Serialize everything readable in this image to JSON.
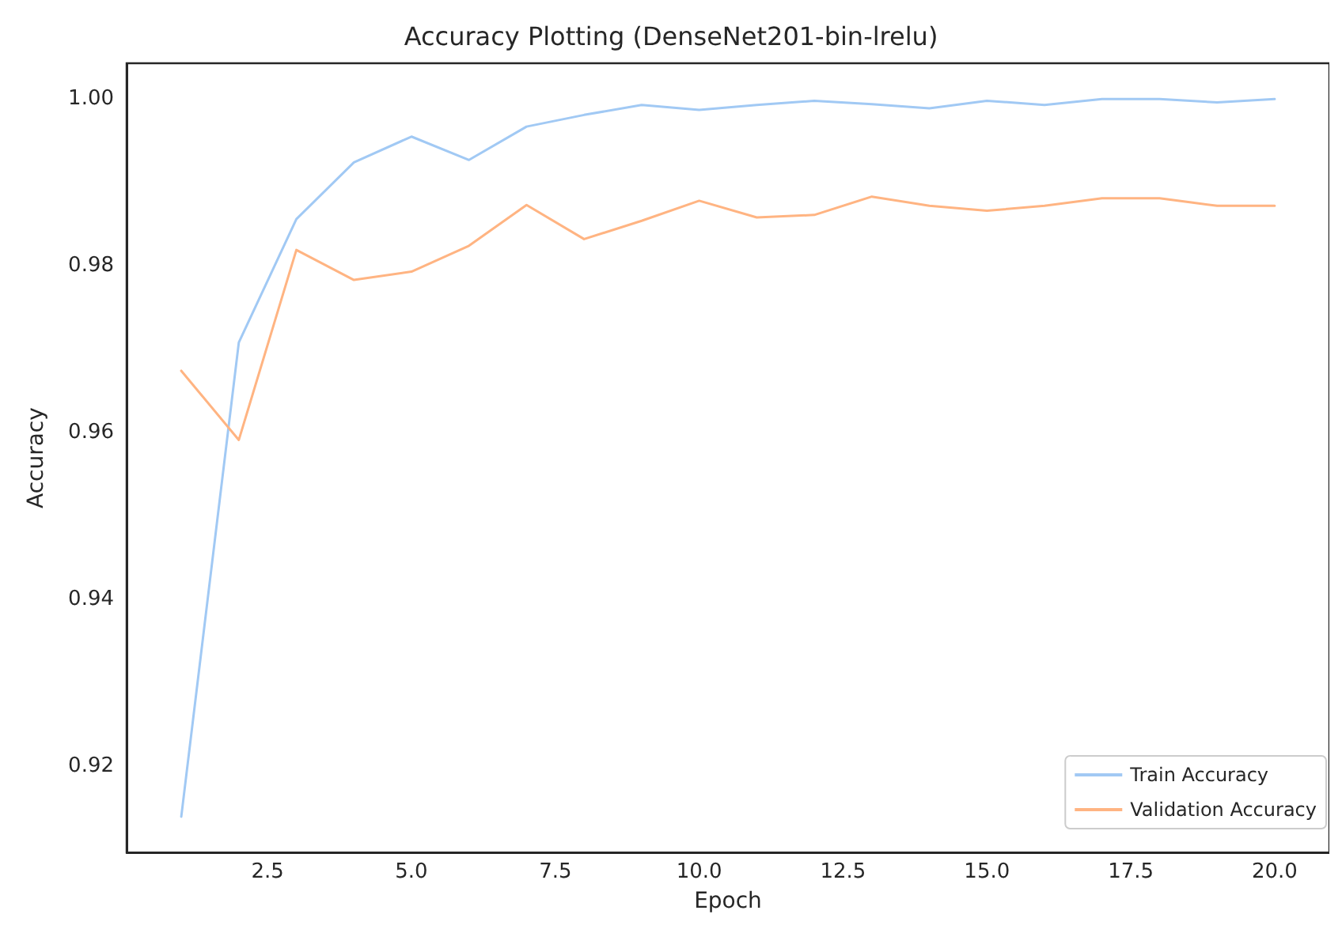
{
  "chart_data": {
    "type": "line",
    "title": "Accuracy Plotting (DenseNet201-bin-lrelu)",
    "xlabel": "Epoch",
    "ylabel": "Accuracy",
    "x": [
      1,
      2,
      3,
      4,
      5,
      6,
      7,
      8,
      9,
      10,
      11,
      12,
      13,
      14,
      15,
      16,
      17,
      18,
      19,
      20
    ],
    "series": [
      {
        "name": "Train Accuracy",
        "color": "#a1c9f4",
        "values": [
          0.9139,
          0.9708,
          0.9856,
          0.9924,
          0.9955,
          0.9927,
          0.9967,
          0.9981,
          0.9993,
          0.9987,
          0.9993,
          0.9998,
          0.9994,
          0.9989,
          0.9998,
          0.9993,
          1.0,
          1.0,
          0.9996,
          1.0
        ]
      },
      {
        "name": "Validation Accuracy",
        "color": "#ffb482",
        "values": [
          0.9674,
          0.9591,
          0.9819,
          0.9783,
          0.9793,
          0.9824,
          0.9873,
          0.9832,
          0.9854,
          0.9878,
          0.9858,
          0.9861,
          0.9883,
          0.9872,
          0.9866,
          0.9872,
          0.9881,
          0.9881,
          0.9872,
          0.9872
        ]
      }
    ],
    "xlim": [
      0.05,
      20.95
    ],
    "ylim": [
      0.9096,
      1.0043
    ],
    "xticks": [
      {
        "value": 2.5,
        "label": "2.5"
      },
      {
        "value": 5,
        "label": "5.0"
      },
      {
        "value": 7.5,
        "label": "7.5"
      },
      {
        "value": 10,
        "label": "10.0"
      },
      {
        "value": 12.5,
        "label": "12.5"
      },
      {
        "value": 15,
        "label": "15.0"
      },
      {
        "value": 17.5,
        "label": "17.5"
      },
      {
        "value": 20,
        "label": "20.0"
      }
    ],
    "yticks": [
      {
        "value": 0.92,
        "label": "0.92"
      },
      {
        "value": 0.94,
        "label": "0.94"
      },
      {
        "value": 0.96,
        "label": "0.96"
      },
      {
        "value": 0.98,
        "label": "0.98"
      },
      {
        "value": 1.0,
        "label": "1.00"
      }
    ],
    "grid": false,
    "legend": "bottom right",
    "marker": "none",
    "line_style": "solid"
  }
}
